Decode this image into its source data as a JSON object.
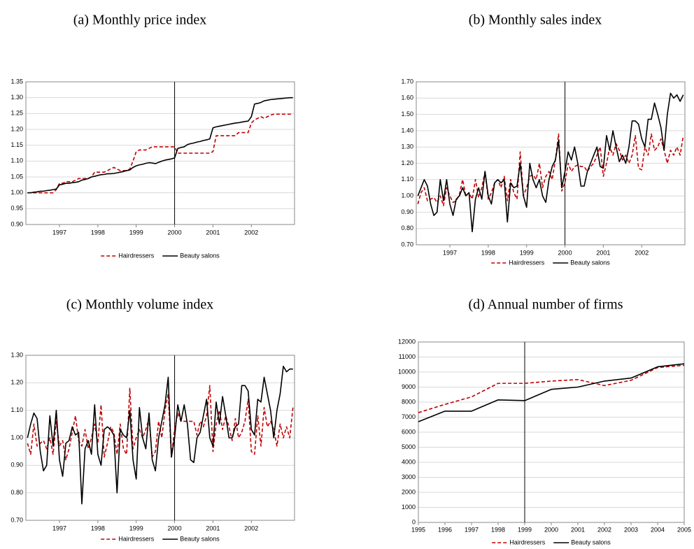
{
  "chart_data": [
    {
      "type": "line",
      "title": "(a) Monthly price index",
      "legend": "bottom",
      "grid": true,
      "vline": "2000",
      "categories": [
        null,
        null,
        null,
        null,
        null,
        null,
        null,
        null,
        null,
        null,
        "1997",
        null,
        null,
        null,
        null,
        null,
        null,
        null,
        null,
        null,
        null,
        null,
        "1998",
        null,
        null,
        null,
        null,
        null,
        null,
        null,
        null,
        null,
        null,
        null,
        "1999",
        null,
        null,
        null,
        null,
        null,
        null,
        null,
        null,
        null,
        null,
        null,
        "2000",
        null,
        null,
        null,
        null,
        null,
        null,
        null,
        null,
        null,
        null,
        null,
        "2001",
        null,
        null,
        null,
        null,
        null,
        null,
        null,
        null,
        null,
        null,
        null,
        "2002",
        null,
        null,
        null,
        null,
        null,
        null,
        null,
        null,
        null,
        null,
        null,
        null,
        null
      ],
      "ylim": [
        0.9,
        1.35
      ],
      "yticks": [
        {
          "value": 0.9,
          "label": "0.90"
        },
        {
          "value": 0.95,
          "label": "0.95"
        },
        {
          "value": 1.0,
          "label": "1.00"
        },
        {
          "value": 1.05,
          "label": "1.05"
        },
        {
          "value": 1.1,
          "label": "1.10"
        },
        {
          "value": 1.15,
          "label": "1.15"
        },
        {
          "value": 1.2,
          "label": "1.20"
        },
        {
          "value": 1.25,
          "label": "1.25"
        },
        {
          "value": 1.3,
          "label": "1.30"
        },
        {
          "value": 1.35,
          "label": "1.35"
        }
      ],
      "series": [
        {
          "name": "Hairdressers",
          "color": "#c00000",
          "dash": true,
          "values": [
            1.0,
            1.0,
            1.0,
            1.0,
            1.0,
            1.0,
            1.0,
            1.0,
            1.0,
            1.01,
            1.03,
            1.03,
            1.035,
            1.035,
            1.035,
            1.04,
            1.045,
            1.045,
            1.045,
            1.045,
            1.05,
            1.065,
            1.065,
            1.065,
            1.065,
            1.07,
            1.075,
            1.08,
            1.075,
            1.07,
            1.07,
            1.07,
            1.075,
            1.1,
            1.13,
            1.135,
            1.135,
            1.135,
            1.14,
            1.145,
            1.145,
            1.145,
            1.145,
            1.145,
            1.145,
            1.145,
            1.145,
            1.125,
            1.125,
            1.125,
            1.125,
            1.125,
            1.125,
            1.125,
            1.125,
            1.125,
            1.125,
            1.125,
            1.13,
            1.18,
            1.18,
            1.18,
            1.18,
            1.18,
            1.18,
            1.18,
            1.19,
            1.19,
            1.19,
            1.19,
            1.22,
            1.23,
            1.235,
            1.24,
            1.235,
            1.24,
            1.245,
            1.248,
            1.248,
            1.248,
            1.248,
            1.248,
            1.248,
            1.248
          ]
        },
        {
          "name": "Beauty salons",
          "color": "#000000",
          "dash": false,
          "values": [
            1.0,
            1.0,
            1.002,
            1.003,
            1.005,
            1.005,
            1.007,
            1.008,
            1.01,
            1.012,
            1.025,
            1.027,
            1.03,
            1.03,
            1.032,
            1.033,
            1.035,
            1.04,
            1.042,
            1.045,
            1.05,
            1.052,
            1.055,
            1.057,
            1.058,
            1.06,
            1.06,
            1.061,
            1.063,
            1.065,
            1.067,
            1.07,
            1.072,
            1.08,
            1.085,
            1.088,
            1.09,
            1.093,
            1.095,
            1.094,
            1.092,
            1.096,
            1.1,
            1.103,
            1.105,
            1.107,
            1.11,
            1.14,
            1.143,
            1.145,
            1.152,
            1.155,
            1.157,
            1.16,
            1.162,
            1.165,
            1.167,
            1.17,
            1.205,
            1.208,
            1.21,
            1.212,
            1.214,
            1.216,
            1.218,
            1.22,
            1.221,
            1.223,
            1.225,
            1.226,
            1.24,
            1.28,
            1.282,
            1.285,
            1.29,
            1.292,
            1.294,
            1.295,
            1.296,
            1.297,
            1.298,
            1.299,
            1.3,
            1.3
          ]
        }
      ]
    },
    {
      "type": "line",
      "title": "(b) Monthly sales index",
      "legend": "bottom",
      "grid": true,
      "vline": "2000",
      "categories": [
        null,
        null,
        null,
        null,
        null,
        null,
        null,
        null,
        null,
        null,
        "1997",
        null,
        null,
        null,
        null,
        null,
        null,
        null,
        null,
        null,
        null,
        null,
        "1998",
        null,
        null,
        null,
        null,
        null,
        null,
        null,
        null,
        null,
        null,
        null,
        "1999",
        null,
        null,
        null,
        null,
        null,
        null,
        null,
        null,
        null,
        null,
        null,
        "2000",
        null,
        null,
        null,
        null,
        null,
        null,
        null,
        null,
        null,
        null,
        null,
        "2001",
        null,
        null,
        null,
        null,
        null,
        null,
        null,
        null,
        null,
        null,
        null,
        "2002",
        null,
        null,
        null,
        null,
        null,
        null,
        null,
        null,
        null,
        null,
        null,
        null,
        null
      ],
      "ylim": [
        0.7,
        1.7
      ],
      "yticks": [
        {
          "value": 0.7,
          "label": "0.70"
        },
        {
          "value": 0.8,
          "label": "0.80"
        },
        {
          "value": 0.9,
          "label": "0.90"
        },
        {
          "value": 1.0,
          "label": "1.00"
        },
        {
          "value": 1.1,
          "label": "1.10"
        },
        {
          "value": 1.2,
          "label": "1.20"
        },
        {
          "value": 1.3,
          "label": "1.30"
        },
        {
          "value": 1.4,
          "label": "1.40"
        },
        {
          "value": 1.5,
          "label": "1.50"
        },
        {
          "value": 1.6,
          "label": "1.60"
        },
        {
          "value": 1.7,
          "label": "1.70"
        }
      ],
      "series": [
        {
          "name": "Hairdressers",
          "color": "#c00000",
          "dash": true,
          "values": [
            0.95,
            1.02,
            1.05,
            0.97,
            0.98,
            0.99,
            0.96,
            1.0,
            0.94,
            1.05,
            1.0,
            0.96,
            0.97,
            1.01,
            1.1,
            1.0,
            1.02,
            0.98,
            1.1,
            0.99,
            1.05,
            1.15,
            0.98,
            1.02,
            1.08,
            1.1,
            1.05,
            1.12,
            0.97,
            1.1,
            1.02,
            0.98,
            1.27,
            1.0,
            1.05,
            1.12,
            1.13,
            1.1,
            1.2,
            1.05,
            1.12,
            1.15,
            1.1,
            1.22,
            1.38,
            1.03,
            1.08,
            1.2,
            1.15,
            1.18,
            1.19,
            1.18,
            1.18,
            1.15,
            1.18,
            1.2,
            1.25,
            1.3,
            1.12,
            1.2,
            1.3,
            1.25,
            1.32,
            1.28,
            1.22,
            1.25,
            1.2,
            1.25,
            1.37,
            1.17,
            1.16,
            1.3,
            1.25,
            1.38,
            1.28,
            1.3,
            1.35,
            1.28,
            1.2,
            1.28,
            1.25,
            1.3,
            1.25,
            1.37
          ]
        },
        {
          "name": "Beauty salons",
          "color": "#000000",
          "dash": false,
          "values": [
            1.0,
            1.05,
            1.1,
            1.06,
            0.95,
            0.88,
            0.9,
            1.1,
            0.97,
            1.1,
            0.95,
            0.88,
            0.98,
            1.0,
            1.05,
            1.0,
            1.02,
            0.78,
            0.98,
            1.05,
            0.98,
            1.15,
            1.0,
            0.95,
            1.08,
            1.1,
            1.08,
            1.1,
            0.84,
            1.08,
            1.05,
            1.06,
            1.2,
            1.0,
            0.93,
            1.2,
            1.1,
            1.05,
            1.1,
            1.0,
            0.96,
            1.1,
            1.18,
            1.22,
            1.34,
            1.05,
            1.15,
            1.27,
            1.22,
            1.3,
            1.2,
            1.06,
            1.06,
            1.15,
            1.2,
            1.25,
            1.3,
            1.18,
            1.17,
            1.37,
            1.28,
            1.4,
            1.3,
            1.21,
            1.25,
            1.2,
            1.3,
            1.46,
            1.46,
            1.44,
            1.35,
            1.3,
            1.47,
            1.47,
            1.57,
            1.5,
            1.42,
            1.28,
            1.5,
            1.63,
            1.6,
            1.62,
            1.58,
            1.62
          ]
        }
      ]
    },
    {
      "type": "line",
      "title": "(c) Monthly volume index",
      "legend": "bottom",
      "grid": true,
      "vline": "2000",
      "categories": [
        null,
        null,
        null,
        null,
        null,
        null,
        null,
        null,
        null,
        null,
        "1997",
        null,
        null,
        null,
        null,
        null,
        null,
        null,
        null,
        null,
        null,
        null,
        "1998",
        null,
        null,
        null,
        null,
        null,
        null,
        null,
        null,
        null,
        null,
        null,
        "1999",
        null,
        null,
        null,
        null,
        null,
        null,
        null,
        null,
        null,
        null,
        null,
        "2000",
        null,
        null,
        null,
        null,
        null,
        null,
        null,
        null,
        null,
        null,
        null,
        "2001",
        null,
        null,
        null,
        null,
        null,
        null,
        null,
        null,
        null,
        null,
        null,
        "2002",
        null,
        null,
        null,
        null,
        null,
        null,
        null,
        null,
        null,
        null,
        null,
        null,
        null
      ],
      "ylim": [
        0.7,
        1.3
      ],
      "yticks": [
        {
          "value": 0.7,
          "label": "0.70"
        },
        {
          "value": 0.8,
          "label": "0.80"
        },
        {
          "value": 0.9,
          "label": "0.90"
        },
        {
          "value": 1.0,
          "label": "1.00"
        },
        {
          "value": 1.1,
          "label": "1.10"
        },
        {
          "value": 1.2,
          "label": "1.20"
        },
        {
          "value": 1.3,
          "label": "1.30"
        }
      ],
      "series": [
        {
          "name": "Hairdressers",
          "color": "#c00000",
          "dash": true,
          "values": [
            0.98,
            0.94,
            1.05,
            0.97,
            0.98,
            0.99,
            0.96,
            1.0,
            0.94,
            1.06,
            0.97,
            0.99,
            0.92,
            0.96,
            1.02,
            1.08,
            0.99,
            0.97,
            1.03,
            0.96,
            1.0,
            1.05,
            0.98,
            1.12,
            0.93,
            0.98,
            1.04,
            1.02,
            0.94,
            1.05,
            0.96,
            0.94,
            1.18,
            0.96,
            1.0,
            1.03,
            1.0,
            1.03,
            1.07,
            0.93,
            0.95,
            1.06,
            1.0,
            1.1,
            1.16,
            0.93,
            1.03,
            1.09,
            1.06,
            1.06,
            1.06,
            1.06,
            1.06,
            1.01,
            1.06,
            1.04,
            1.08,
            1.19,
            0.95,
            1.05,
            1.1,
            1.03,
            1.08,
            1.04,
            0.99,
            1.07,
            1.0,
            1.02,
            1.06,
            1.14,
            0.95,
            0.94,
            1.08,
            0.97,
            1.11,
            1.04,
            1.06,
            1.03,
            0.97,
            1.05,
            1.0,
            1.04,
            1.0,
            1.11
          ]
        },
        {
          "name": "Beauty salons",
          "color": "#000000",
          "dash": false,
          "values": [
            1.0,
            1.05,
            1.09,
            1.07,
            0.95,
            0.88,
            0.9,
            1.08,
            0.97,
            1.1,
            0.92,
            0.86,
            0.98,
            0.99,
            1.04,
            1.01,
            1.02,
            0.76,
            0.96,
            0.99,
            0.94,
            1.12,
            0.94,
            0.9,
            1.03,
            1.04,
            1.03,
            1.01,
            0.8,
            1.03,
            1.01,
            1.0,
            1.1,
            0.92,
            0.85,
            1.11,
            1.0,
            0.96,
            1.09,
            0.92,
            0.88,
            1.0,
            1.06,
            1.12,
            1.22,
            0.93,
            1.0,
            1.12,
            1.06,
            1.12,
            1.05,
            0.92,
            0.91,
            1.0,
            1.02,
            1.08,
            1.14,
            1.0,
            0.97,
            1.13,
            1.05,
            1.15,
            1.08,
            1.0,
            1.0,
            1.04,
            1.05,
            1.19,
            1.19,
            1.17,
            1.03,
            1.01,
            1.14,
            1.13,
            1.22,
            1.16,
            1.1,
            1.0,
            1.1,
            1.16,
            1.26,
            1.24,
            1.25,
            1.25
          ]
        }
      ]
    },
    {
      "type": "line",
      "title": "(d) Annual number of firms",
      "legend": "bottom",
      "grid": true,
      "vline": 1999,
      "x": [
        1995,
        1996,
        1997,
        1998,
        1999,
        2000,
        2001,
        2002,
        2003,
        2004,
        2005
      ],
      "xlim": [
        1995,
        2005
      ],
      "xticks": [
        1995,
        1996,
        1997,
        1998,
        1999,
        2000,
        2001,
        2002,
        2003,
        2004,
        2005
      ],
      "ylim": [
        0,
        12000
      ],
      "yticks": [
        0,
        1000,
        2000,
        3000,
        4000,
        5000,
        6000,
        7000,
        8000,
        9000,
        10000,
        11000,
        12000
      ],
      "series": [
        {
          "name": "Hairdressers",
          "color": "#c00000",
          "dash": true,
          "values": [
            7300,
            7850,
            8350,
            9250,
            9250,
            9400,
            9500,
            9100,
            9450,
            10300,
            10450
          ]
        },
        {
          "name": "Beauty salons",
          "color": "#000000",
          "dash": false,
          "values": [
            6700,
            7400,
            7400,
            8150,
            8100,
            8850,
            9000,
            9400,
            9600,
            10350,
            10550
          ]
        }
      ]
    }
  ]
}
